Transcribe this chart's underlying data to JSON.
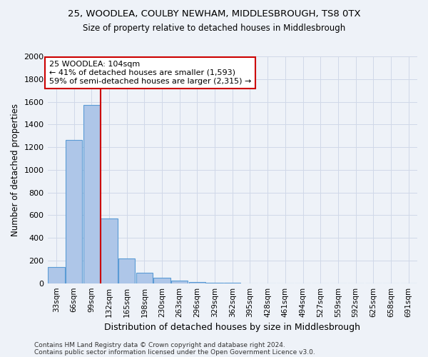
{
  "title": "25, WOODLEA, COULBY NEWHAM, MIDDLESBROUGH, TS8 0TX",
  "subtitle": "Size of property relative to detached houses in Middlesbrough",
  "xlabel": "Distribution of detached houses by size in Middlesbrough",
  "ylabel": "Number of detached properties",
  "footer_line1": "Contains HM Land Registry data © Crown copyright and database right 2024.",
  "footer_line2": "Contains public sector information licensed under the Open Government Licence v3.0.",
  "bar_labels": [
    "33sqm",
    "66sqm",
    "99sqm",
    "132sqm",
    "165sqm",
    "198sqm",
    "230sqm",
    "263sqm",
    "296sqm",
    "329sqm",
    "362sqm",
    "395sqm",
    "428sqm",
    "461sqm",
    "494sqm",
    "527sqm",
    "559sqm",
    "592sqm",
    "625sqm",
    "658sqm",
    "691sqm"
  ],
  "bar_values": [
    140,
    1265,
    1575,
    570,
    220,
    95,
    50,
    25,
    10,
    5,
    3,
    0,
    0,
    0,
    0,
    0,
    0,
    0,
    0,
    0,
    0
  ],
  "bar_color": "#aec6e8",
  "bar_edge_color": "#5a9bd5",
  "ylim": [
    0,
    2000
  ],
  "yticks": [
    0,
    200,
    400,
    600,
    800,
    1000,
    1200,
    1400,
    1600,
    1800,
    2000
  ],
  "vline_x": 2.5,
  "vline_color": "#cc0000",
  "annotation_text_line1": "25 WOODLEA: 104sqm",
  "annotation_text_line2": "← 41% of detached houses are smaller (1,593)",
  "annotation_text_line3": "59% of semi-detached houses are larger (2,315) →",
  "annotation_box_color": "#cc0000",
  "annotation_bg": "#ffffff",
  "grid_color": "#d0d8e8",
  "background_color": "#eef2f8"
}
